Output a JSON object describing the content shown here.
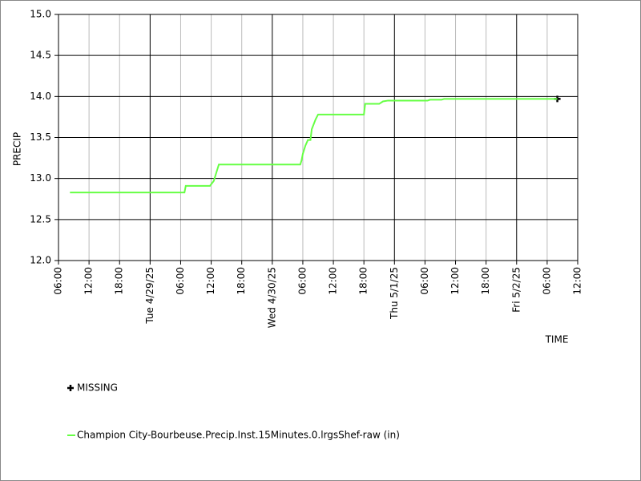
{
  "chart_data": {
    "type": "line",
    "y_label": "PRECIP",
    "x_label": "TIME",
    "xlim": [
      0,
      102
    ],
    "ylim": [
      12,
      15
    ],
    "grid": true,
    "yticks": [
      {
        "value": 12,
        "label": "12.0"
      },
      {
        "value": 12.5,
        "label": "12.5"
      },
      {
        "value": 13,
        "label": "13.0"
      },
      {
        "value": 13.5,
        "label": "13.5"
      },
      {
        "value": 14,
        "label": "14.0"
      },
      {
        "value": 14.5,
        "label": "14.5"
      },
      {
        "value": 15,
        "label": "15.0"
      }
    ],
    "xticks": [
      {
        "value": 0,
        "label": "06:00"
      },
      {
        "value": 6,
        "label": "12:00"
      },
      {
        "value": 12,
        "label": "18:00"
      },
      {
        "value": 18,
        "label": "Tue 4/29/25"
      },
      {
        "value": 24,
        "label": "06:00"
      },
      {
        "value": 30,
        "label": "12:00"
      },
      {
        "value": 36,
        "label": "18:00"
      },
      {
        "value": 42,
        "label": "Wed 4/30/25"
      },
      {
        "value": 48,
        "label": "06:00"
      },
      {
        "value": 54,
        "label": "12:00"
      },
      {
        "value": 60,
        "label": "18:00"
      },
      {
        "value": 66,
        "label": "Thu 5/1/25"
      },
      {
        "value": 72,
        "label": "06:00"
      },
      {
        "value": 78,
        "label": "12:00"
      },
      {
        "value": 84,
        "label": "18:00"
      },
      {
        "value": 90,
        "label": "Fri 5/2/25"
      },
      {
        "value": 96,
        "label": "06:00"
      },
      {
        "value": 102,
        "label": "12:00"
      }
    ],
    "series": [
      {
        "name": "MISSING",
        "color": "#000000",
        "marker": "+",
        "x": [
          98
        ],
        "values": [
          13.97
        ]
      },
      {
        "name": "Champion City-Bourbeuse.Precip.Inst.15Minutes.0.lrgsShef-raw (in)",
        "color": "#66ff44",
        "x": [
          2.25,
          24.75,
          25,
          29.75,
          30.5,
          31,
          31.25,
          31.5,
          47.5,
          47.75,
          48,
          48.5,
          49,
          49.5,
          49.75,
          50.5,
          51,
          60,
          60.25,
          63,
          63.75,
          64.75,
          72.5,
          73,
          75.25,
          75.75,
          98
        ],
        "values": [
          12.83,
          12.83,
          12.91,
          12.91,
          12.97,
          13.07,
          13.12,
          13.17,
          13.17,
          13.22,
          13.3,
          13.4,
          13.47,
          13.47,
          13.6,
          13.72,
          13.78,
          13.78,
          13.91,
          13.91,
          13.94,
          13.95,
          13.95,
          13.96,
          13.96,
          13.97,
          13.97
        ]
      }
    ]
  }
}
